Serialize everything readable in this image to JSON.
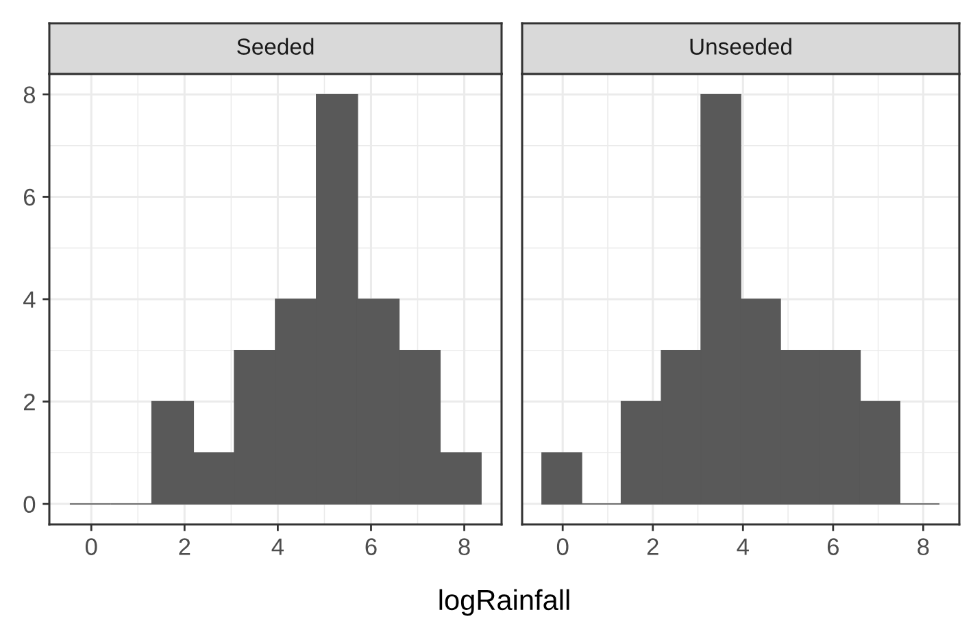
{
  "chart_data": [
    {
      "type": "histogram",
      "title": "Seeded",
      "xlabel": "logRainfall",
      "color": "#595959",
      "bins": [
        -0.46,
        0.42,
        1.3,
        2.19,
        3.07,
        3.95,
        4.83,
        5.71,
        6.6,
        7.48,
        8.36
      ],
      "values": [
        0,
        0,
        2,
        1,
        3,
        4,
        8,
        4,
        3,
        1
      ],
      "xlim": [
        -0.9,
        8.8
      ],
      "ylim": [
        -0.4,
        8.4
      ],
      "xticks": [
        0,
        2,
        4,
        6,
        8
      ],
      "yticks": [
        0,
        2,
        4,
        6,
        8
      ],
      "grid": true
    },
    {
      "type": "histogram",
      "title": "Unseeded",
      "color": "#595959",
      "bins": [
        -0.46,
        0.42,
        1.3,
        2.19,
        3.07,
        3.95,
        4.83,
        5.71,
        6.6,
        7.48,
        8.36
      ],
      "values": [
        1,
        0,
        2,
        3,
        8,
        4,
        3,
        3,
        2,
        0
      ],
      "xlim": [
        -0.9,
        8.8
      ],
      "ylim": [
        -0.4,
        8.4
      ],
      "xticks": [
        0,
        2,
        4,
        6,
        8
      ],
      "yticks": [
        0,
        2,
        4,
        6,
        8
      ],
      "grid": true,
      "tick_labels": "x"
    }
  ]
}
